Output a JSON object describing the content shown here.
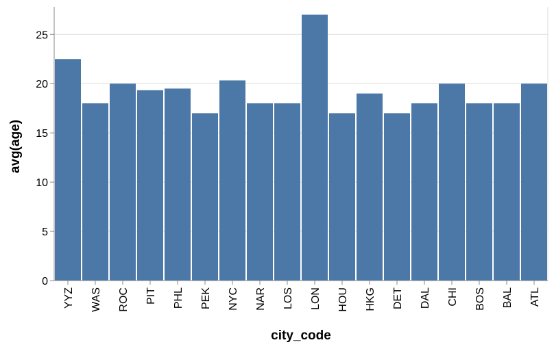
{
  "chart_data": {
    "type": "bar",
    "title": "",
    "xlabel": "city_code",
    "ylabel": "avg(age)",
    "categories": [
      "YYZ",
      "WAS",
      "ROC",
      "PIT",
      "PHL",
      "PEK",
      "NYC",
      "NAR",
      "LOS",
      "LON",
      "HOU",
      "HKG",
      "DET",
      "DAL",
      "CHI",
      "BOS",
      "BAL",
      "ATL"
    ],
    "values": [
      22.5,
      18,
      20,
      19.33,
      19.5,
      17,
      20.33,
      18,
      18,
      27,
      17,
      19,
      17,
      18,
      20,
      18,
      18,
      20
    ],
    "ylim": [
      0,
      27.8
    ],
    "yticks": [
      0,
      5,
      10,
      15,
      20,
      25
    ],
    "grid": true,
    "bar_color": "#4c78a8",
    "grid_color": "#dddddd",
    "axis_color": "#888888"
  }
}
